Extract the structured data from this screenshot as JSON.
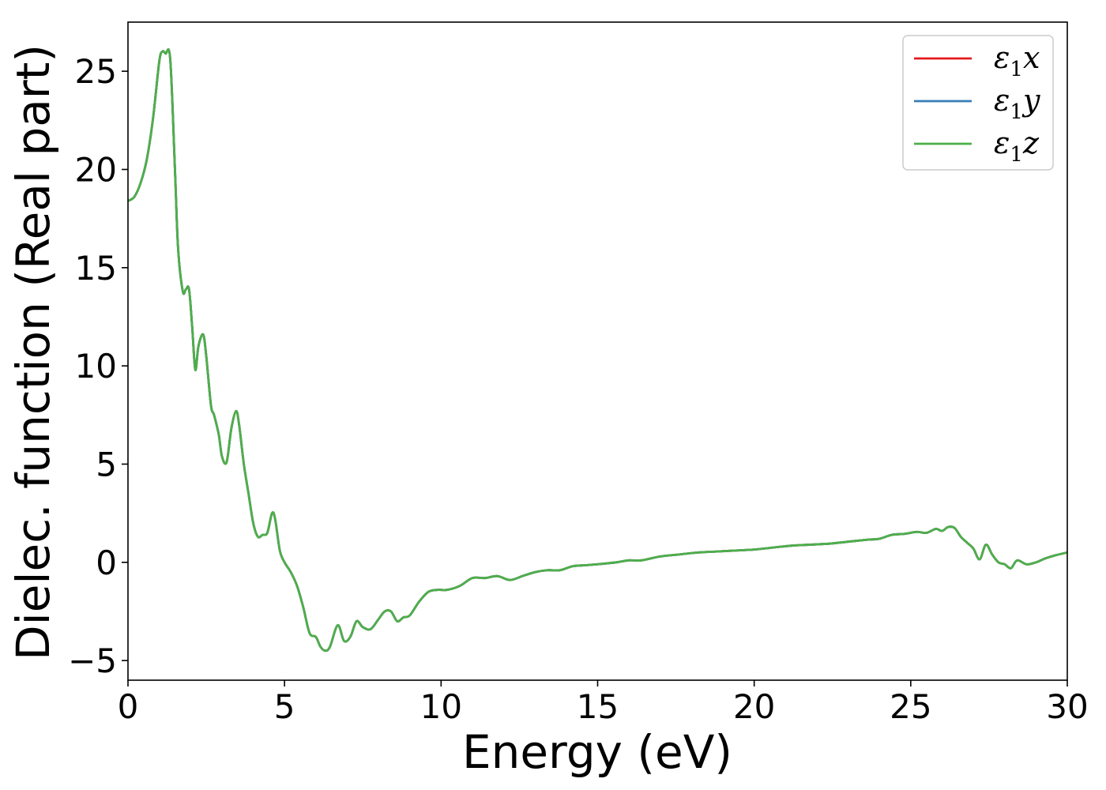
{
  "chart_data": {
    "type": "line",
    "xlabel": "Energy (eV)",
    "ylabel": "Dielec. function (Real part)",
    "xlim": [
      0,
      30
    ],
    "ylim": [
      -6,
      27.5
    ],
    "xticks": [
      0,
      5,
      10,
      15,
      20,
      25,
      30
    ],
    "xtick_labels": [
      "0",
      "5",
      "10",
      "15",
      "20",
      "25",
      "30"
    ],
    "yticks": [
      -5,
      0,
      5,
      10,
      15,
      20,
      25
    ],
    "ytick_labels": [
      "−5",
      "0",
      "5",
      "10",
      "15",
      "20",
      "25"
    ],
    "grid": false,
    "legend_position": "top-right",
    "colors": {
      "x": "#e41a1c",
      "y": "#377eb8",
      "z": "#4daf4a"
    },
    "series": [
      {
        "name": "ε1x",
        "symbol": "ε",
        "sub": "1",
        "comp": "x",
        "color": "#e41a1c"
      },
      {
        "name": "ε1y",
        "symbol": "ε",
        "sub": "1",
        "comp": "y",
        "color": "#377eb8"
      },
      {
        "name": "ε1z",
        "symbol": "ε",
        "sub": "1",
        "comp": "z",
        "color": "#4daf4a"
      }
    ],
    "x": [
      0,
      0.2,
      0.4,
      0.6,
      0.8,
      1.0,
      1.1,
      1.2,
      1.35,
      1.5,
      1.6,
      1.75,
      1.85,
      1.95,
      2.05,
      2.15,
      2.25,
      2.4,
      2.5,
      2.65,
      2.75,
      2.9,
      3.0,
      3.15,
      3.3,
      3.45,
      3.55,
      3.7,
      3.85,
      4.0,
      4.15,
      4.3,
      4.45,
      4.6,
      4.7,
      4.85,
      5.0,
      5.2,
      5.4,
      5.6,
      5.8,
      6.0,
      6.15,
      6.3,
      6.45,
      6.7,
      6.9,
      7.1,
      7.3,
      7.5,
      7.75,
      8.0,
      8.2,
      8.4,
      8.6,
      8.8,
      9.0,
      9.3,
      9.6,
      9.9,
      10.2,
      10.6,
      11.0,
      11.4,
      11.8,
      12.2,
      12.6,
      13.0,
      13.4,
      13.8,
      14.2,
      14.6,
      15.0,
      15.6,
      16.0,
      16.4,
      17.0,
      17.6,
      18.2,
      18.8,
      19.4,
      20.0,
      20.6,
      21.2,
      21.8,
      22.4,
      23.0,
      23.6,
      24.0,
      24.4,
      24.8,
      25.2,
      25.5,
      25.8,
      26.0,
      26.2,
      26.4,
      26.6,
      26.8,
      27.0,
      27.2,
      27.4,
      27.6,
      27.8,
      28.0,
      28.2,
      28.4,
      28.7,
      29.0,
      29.3,
      29.6,
      30.0
    ],
    "values": [
      18.4,
      18.6,
      19.3,
      20.5,
      22.6,
      25.5,
      26.0,
      25.9,
      25.6,
      20.0,
      16.0,
      13.8,
      13.9,
      13.9,
      12.0,
      9.8,
      11.0,
      11.6,
      10.5,
      8.0,
      7.5,
      6.5,
      5.4,
      5.1,
      6.8,
      7.7,
      7.0,
      5.0,
      3.5,
      2.0,
      1.3,
      1.4,
      1.5,
      2.5,
      2.2,
      0.6,
      0.0,
      -0.5,
      -1.2,
      -2.3,
      -3.6,
      -3.8,
      -4.3,
      -4.5,
      -4.3,
      -3.2,
      -4.0,
      -3.8,
      -3.0,
      -3.3,
      -3.4,
      -2.9,
      -2.5,
      -2.5,
      -3.0,
      -2.8,
      -2.7,
      -2.0,
      -1.5,
      -1.4,
      -1.4,
      -1.2,
      -0.8,
      -0.8,
      -0.7,
      -0.9,
      -0.7,
      -0.5,
      -0.4,
      -0.4,
      -0.2,
      -0.15,
      -0.1,
      0.0,
      0.1,
      0.1,
      0.3,
      0.4,
      0.5,
      0.55,
      0.6,
      0.65,
      0.75,
      0.85,
      0.9,
      0.95,
      1.05,
      1.15,
      1.2,
      1.4,
      1.45,
      1.55,
      1.5,
      1.7,
      1.6,
      1.8,
      1.75,
      1.3,
      1.0,
      0.7,
      0.15,
      0.9,
      0.4,
      0.0,
      -0.1,
      -0.3,
      0.1,
      -0.1,
      0.0,
      0.2,
      0.35,
      0.5
    ]
  }
}
